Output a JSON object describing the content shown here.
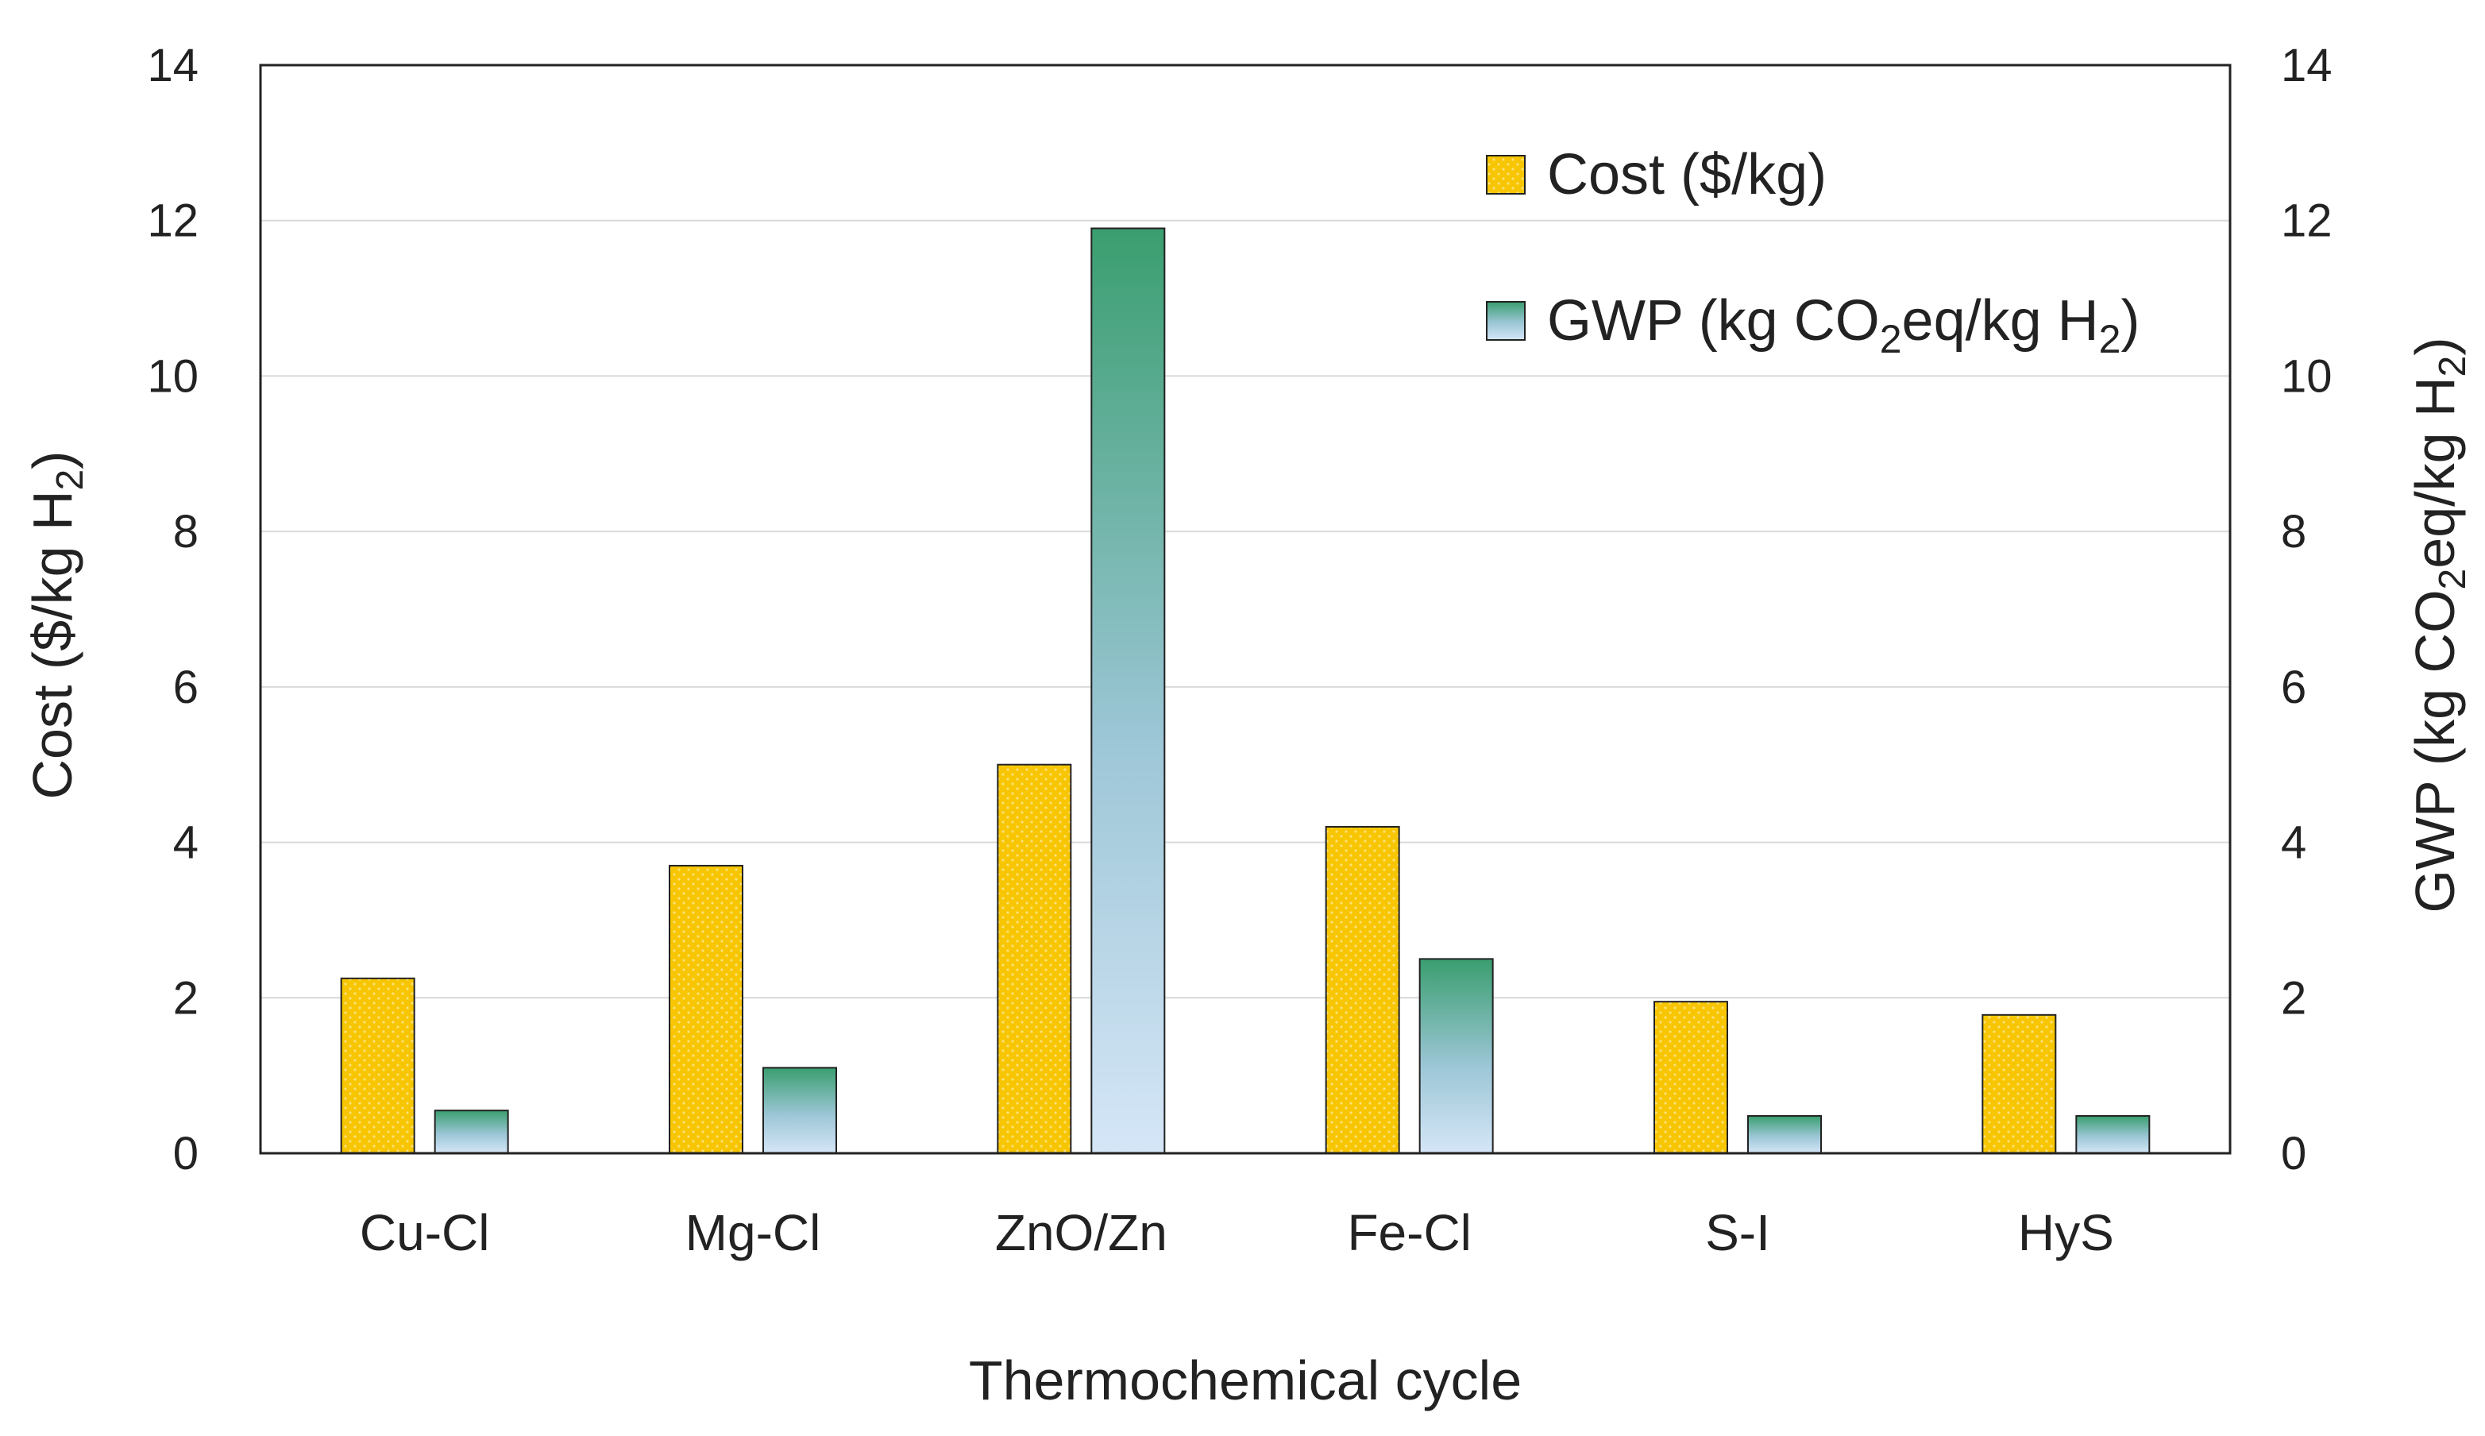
{
  "chart_data": {
    "type": "bar",
    "xlabel": "Thermochemical cycle",
    "ylabel": {
      "main": "Cost ($/kg H",
      "sub": "2",
      "tail": ")"
    },
    "y2label": {
      "p1": "GWP (kg CO",
      "sub1": "2",
      "p2": "eq/kg H",
      "sub2": "2",
      "tail": ")"
    },
    "ylim": [
      0,
      14
    ],
    "y2lim": [
      0,
      14
    ],
    "yticks": [
      "0",
      "2",
      "4",
      "6",
      "8",
      "10",
      "12",
      "14"
    ],
    "y2ticks": [
      "0",
      "2",
      "4",
      "6",
      "8",
      "10",
      "12",
      "14"
    ],
    "grid": true,
    "legend_position": "top-right",
    "categories": [
      "Cu-Cl",
      "Mg-Cl",
      "ZnO/Zn",
      "Fe-Cl",
      "S-I",
      "HyS"
    ],
    "series": [
      {
        "name": "Cost ($/kg)",
        "legend": {
          "main": "Cost ($/kg)"
        },
        "axis": "left",
        "values": [
          2.25,
          3.7,
          5.0,
          4.2,
          1.95,
          1.78
        ],
        "color": "#F5C400"
      },
      {
        "name": "GWP (kg CO2eq/kg H2)",
        "legend": {
          "p1": "GWP (kg CO",
          "sub1": "2",
          "p2": "eq/kg H",
          "sub2": "2",
          "tail": ")"
        },
        "axis": "right",
        "values": [
          0.55,
          1.1,
          11.9,
          2.5,
          0.48,
          0.48
        ],
        "color_top": "#3A9E6F",
        "color_bottom": "#D5E6F7"
      }
    ]
  }
}
